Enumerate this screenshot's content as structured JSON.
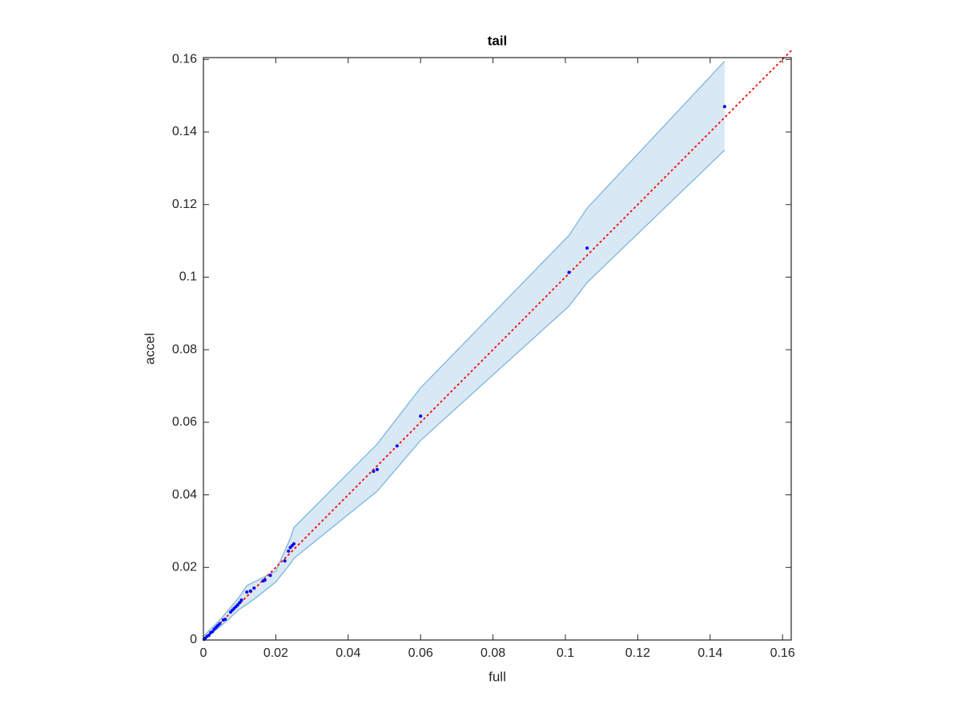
{
  "chart_data": {
    "type": "scatter",
    "title": "tail",
    "x_label": "full",
    "y_label": "accel",
    "x": [
      0.0002,
      0.0005,
      0.001,
      0.0015,
      0.002,
      0.0025,
      0.003,
      0.0035,
      0.004,
      0.0045,
      0.0055,
      0.006,
      0.0075,
      0.008,
      0.0085,
      0.009,
      0.0095,
      0.01,
      0.0105,
      0.012,
      0.013,
      0.014,
      0.0165,
      0.017,
      0.0185,
      0.0225,
      0.0235,
      0.024,
      0.0245,
      0.025,
      0.047,
      0.048,
      0.0535,
      0.06,
      0.101,
      0.106,
      0.144
    ],
    "values": [
      0.0002,
      0.0005,
      0.001,
      0.0013,
      0.002,
      0.0023,
      0.003,
      0.0035,
      0.004,
      0.0045,
      0.0055,
      0.0057,
      0.0077,
      0.0082,
      0.0087,
      0.0092,
      0.0097,
      0.0103,
      0.011,
      0.0132,
      0.0135,
      0.0143,
      0.0163,
      0.0165,
      0.0178,
      0.0218,
      0.0245,
      0.0255,
      0.026,
      0.0265,
      0.0465,
      0.047,
      0.0535,
      0.0617,
      0.1013,
      0.108,
      0.147
    ],
    "color": "#0000ff",
    "band": {
      "x": [
        0,
        0.005,
        0.01,
        0.012,
        0.015,
        0.02,
        0.024,
        0.025,
        0.048,
        0.06,
        0.101,
        0.106,
        0.144
      ],
      "upper": [
        0.001,
        0.006,
        0.012,
        0.015,
        0.0165,
        0.019,
        0.028,
        0.031,
        0.054,
        0.0695,
        0.1115,
        0.119,
        0.1595
      ],
      "lower": [
        0,
        0.004,
        0.0085,
        0.0098,
        0.012,
        0.016,
        0.021,
        0.0225,
        0.041,
        0.055,
        0.092,
        0.0985,
        0.135
      ],
      "color": "#7fb5dc",
      "fill": "#d8e8f4"
    },
    "reference": {
      "x": [
        0,
        0.1624
      ],
      "values": [
        0,
        0.1624
      ],
      "color": "#ff0000"
    },
    "xlim": [
      0,
      0.1624
    ],
    "ylim": [
      0,
      0.1605
    ],
    "xticks": [
      0,
      0.02,
      0.04,
      0.06,
      0.08,
      0.1,
      0.12,
      0.14,
      0.16
    ],
    "yticks": [
      0,
      0.02,
      0.04,
      0.06,
      0.08,
      0.1,
      0.12,
      0.14,
      0.16
    ]
  }
}
